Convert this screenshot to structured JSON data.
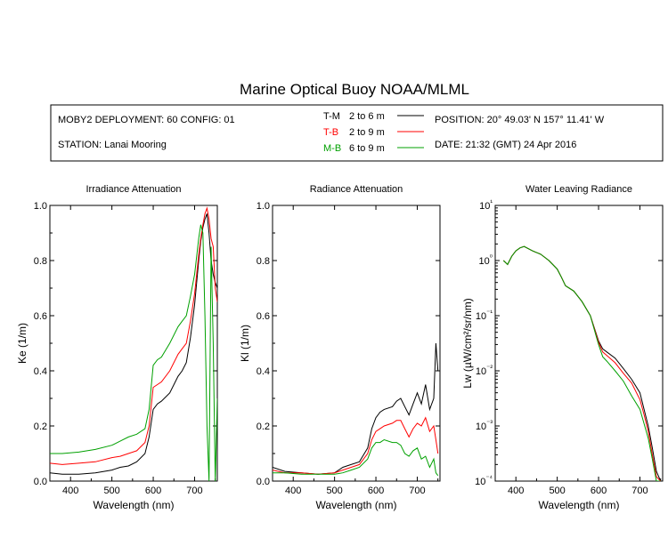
{
  "title": "Marine Optical Buoy NOAA/MLML",
  "info": {
    "deployment": "MOBY2 DEPLOYMENT: 60 CONFIG: 01",
    "station": "STATION: Lanai Mooring",
    "position": "POSITION: 20° 49.03' N   157° 11.41' W",
    "date": "DATE: 21:32 (GMT) 24 Apr 2016"
  },
  "legend": [
    {
      "code": "T-M",
      "range": "2 to 6  m",
      "color": "#000000"
    },
    {
      "code": "T-B",
      "range": "2 to 9  m",
      "color": "#ff0000"
    },
    {
      "code": "M-B",
      "range": "6 to 9  m",
      "color": "#00a000"
    }
  ],
  "chart_data": [
    {
      "type": "line",
      "title": "Irradiance Attenuation",
      "xlabel": "Wavelength (nm)",
      "ylabel": "Ke  (1/m)",
      "xlim": [
        350,
        755
      ],
      "ylim": [
        0,
        1.0
      ],
      "xticks": [
        400,
        500,
        600,
        700
      ],
      "yticks": [
        0.0,
        0.2,
        0.4,
        0.6,
        0.8,
        1.0
      ],
      "ytick_labels": [
        "0.0",
        "0.2",
        "0.4",
        "0.6",
        "0.8",
        "1.0"
      ],
      "x": [
        350,
        380,
        420,
        460,
        500,
        520,
        540,
        560,
        580,
        590,
        600,
        610,
        620,
        640,
        660,
        670,
        680,
        690,
        700,
        710,
        715,
        720,
        725,
        730,
        735,
        740,
        745,
        750,
        755
      ],
      "series": [
        {
          "name": "T-M",
          "color": "#000000",
          "values": [
            0.03,
            0.025,
            0.025,
            0.03,
            0.04,
            0.05,
            0.055,
            0.07,
            0.1,
            0.16,
            0.26,
            0.28,
            0.29,
            0.32,
            0.38,
            0.4,
            0.43,
            0.52,
            0.64,
            0.8,
            0.87,
            0.92,
            0.95,
            0.97,
            0.9,
            0.8,
            0.75,
            0.72,
            0.7
          ]
        },
        {
          "name": "T-B",
          "color": "#ff0000",
          "values": [
            0.065,
            0.06,
            0.065,
            0.07,
            0.085,
            0.09,
            0.1,
            0.11,
            0.14,
            0.2,
            0.34,
            0.35,
            0.36,
            0.4,
            0.46,
            0.48,
            0.5,
            0.58,
            0.68,
            0.82,
            0.88,
            0.93,
            0.97,
            0.99,
            0.95,
            0.88,
            0.85,
            0.7,
            0.65
          ]
        },
        {
          "name": "M-B",
          "color": "#00a000",
          "values": [
            0.1,
            0.1,
            0.105,
            0.115,
            0.13,
            0.145,
            0.16,
            0.17,
            0.19,
            0.26,
            0.42,
            0.44,
            0.45,
            0.5,
            0.56,
            0.58,
            0.6,
            0.67,
            0.75,
            0.88,
            0.93,
            0.9,
            0.6,
            0.2,
            0.0,
            0.85,
            0.5,
            0.0,
            0.3
          ]
        }
      ]
    },
    {
      "type": "line",
      "title": "Radiance Attenuation",
      "xlabel": "Wavelength (nm)",
      "ylabel": "Kl  (1/m)",
      "xlim": [
        350,
        755
      ],
      "ylim": [
        0,
        1.0
      ],
      "xticks": [
        400,
        500,
        600,
        700
      ],
      "yticks": [
        0.0,
        0.2,
        0.4,
        0.6,
        0.8,
        1.0
      ],
      "ytick_labels": [
        "0.0",
        "0.2",
        "0.4",
        "0.6",
        "0.8",
        "1.0"
      ],
      "x": [
        350,
        380,
        420,
        460,
        500,
        520,
        540,
        560,
        580,
        590,
        600,
        610,
        620,
        640,
        650,
        660,
        670,
        680,
        690,
        700,
        710,
        720,
        730,
        740,
        745,
        750
      ],
      "series": [
        {
          "name": "T-M",
          "color": "#000000",
          "values": [
            0.05,
            0.035,
            0.03,
            0.025,
            0.03,
            0.05,
            0.06,
            0.07,
            0.12,
            0.19,
            0.23,
            0.25,
            0.26,
            0.27,
            0.29,
            0.3,
            0.27,
            0.24,
            0.28,
            0.32,
            0.28,
            0.35,
            0.26,
            0.3,
            0.5,
            0.4
          ]
        },
        {
          "name": "T-B",
          "color": "#ff0000",
          "values": [
            0.04,
            0.03,
            0.03,
            0.025,
            0.03,
            0.04,
            0.05,
            0.06,
            0.1,
            0.15,
            0.18,
            0.19,
            0.2,
            0.21,
            0.22,
            0.22,
            0.19,
            0.16,
            0.19,
            0.21,
            0.2,
            0.23,
            0.18,
            0.2,
            0.15,
            0.1
          ]
        },
        {
          "name": "M-B",
          "color": "#00a000",
          "values": [
            0.03,
            0.03,
            0.025,
            0.025,
            0.025,
            0.03,
            0.04,
            0.05,
            0.08,
            0.12,
            0.14,
            0.14,
            0.15,
            0.14,
            0.14,
            0.13,
            0.1,
            0.09,
            0.11,
            0.12,
            0.08,
            0.09,
            0.05,
            0.08,
            0.03,
            0.02
          ]
        }
      ]
    },
    {
      "type": "line",
      "title": "Water Leaving Radiance",
      "xlabel": "Wavelength (nm)",
      "ylabel": "Lw  (µW/cm²/sr/nm)",
      "log_scale_y": true,
      "xlim": [
        350,
        755
      ],
      "ylim": [
        0.0001,
        10
      ],
      "xticks": [
        400,
        500,
        600,
        700
      ],
      "ytick_labels": [
        "10⁻⁴",
        "10⁻³",
        "10⁻²",
        "10⁻¹",
        "10⁰",
        "10¹"
      ],
      "yticks": [
        0.0001,
        0.001,
        0.01,
        0.1,
        1,
        10
      ],
      "x": [
        370,
        380,
        390,
        400,
        410,
        420,
        440,
        460,
        480,
        500,
        510,
        520,
        540,
        560,
        580,
        600,
        610,
        620,
        640,
        660,
        680,
        700,
        710,
        720,
        730,
        740,
        750
      ],
      "series": [
        {
          "name": "T-M",
          "color": "#000000",
          "values": [
            1.0,
            0.85,
            1.2,
            1.5,
            1.7,
            1.8,
            1.5,
            1.3,
            1.0,
            0.7,
            0.5,
            0.35,
            0.28,
            0.18,
            0.1,
            0.035,
            0.025,
            0.022,
            0.017,
            0.011,
            0.007,
            0.004,
            0.002,
            0.001,
            0.0004,
            0.00015,
            0.0001
          ]
        },
        {
          "name": "T-B",
          "color": "#ff0000",
          "values": [
            1.0,
            0.85,
            1.2,
            1.5,
            1.7,
            1.8,
            1.5,
            1.3,
            1.0,
            0.7,
            0.5,
            0.35,
            0.28,
            0.18,
            0.1,
            0.033,
            0.022,
            0.019,
            0.014,
            0.009,
            0.006,
            0.003,
            0.0016,
            0.0008,
            0.0003,
            0.00012,
            0.0001
          ]
        },
        {
          "name": "M-B",
          "color": "#00a000",
          "values": [
            1.0,
            0.85,
            1.2,
            1.5,
            1.7,
            1.8,
            1.5,
            1.3,
            1.0,
            0.7,
            0.5,
            0.35,
            0.28,
            0.18,
            0.1,
            0.03,
            0.018,
            0.015,
            0.01,
            0.0065,
            0.0035,
            0.002,
            0.0011,
            0.0006,
            0.00025,
            0.0001,
            0.0001
          ]
        }
      ]
    }
  ]
}
